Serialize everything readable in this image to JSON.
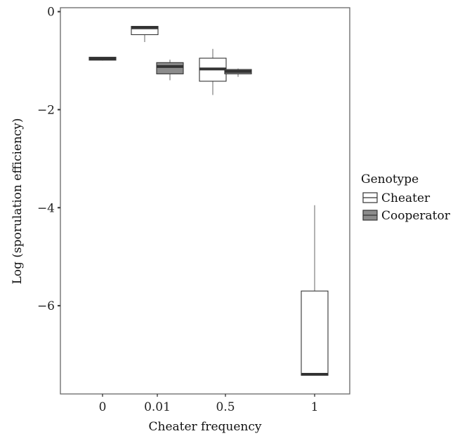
{
  "chart_data": {
    "type": "boxplot",
    "xlabel": "Cheater frequency",
    "ylabel": "Log (sporulation efficiency)",
    "categories": [
      "0",
      "0.01",
      "0.5",
      "1"
    ],
    "y_ticks": [
      0,
      -2,
      -4,
      -6
    ],
    "y_tick_labels": [
      "0",
      "−2",
      "−4",
      "−6"
    ],
    "ylim": [
      -7.8,
      0.08
    ],
    "grid": false,
    "legend": {
      "title": "Genotype",
      "position": "right",
      "entries": [
        "Cheater",
        "Cooperator"
      ]
    },
    "series": [
      {
        "name": "Cheater",
        "color": "#ffffff",
        "boxes": [
          {
            "category": "0.01",
            "whisker_low": -0.62,
            "q1": -0.47,
            "median": -0.33,
            "q3": -0.3,
            "whisker_high": -0.3
          },
          {
            "category": "0.5",
            "whisker_low": -1.7,
            "q1": -1.42,
            "median": -1.17,
            "q3": -0.95,
            "whisker_high": -0.76
          },
          {
            "category": "1",
            "whisker_low": -7.42,
            "q1": -7.42,
            "median": -7.4,
            "q3": -5.7,
            "whisker_high": -3.95
          }
        ]
      },
      {
        "name": "Cooperator",
        "color": "#8c8c8c",
        "boxes": [
          {
            "category": "0",
            "whisker_low": -1.0,
            "q1": -0.99,
            "median": -0.96,
            "q3": -0.93,
            "whisker_high": -0.93
          },
          {
            "category": "0.01",
            "whisker_low": -1.4,
            "q1": -1.27,
            "median": -1.12,
            "q3": -1.04,
            "whisker_high": -0.98
          },
          {
            "category": "0.5",
            "whisker_low": -1.33,
            "q1": -1.27,
            "median": -1.22,
            "q3": -1.18,
            "whisker_high": -1.16
          }
        ]
      }
    ]
  }
}
